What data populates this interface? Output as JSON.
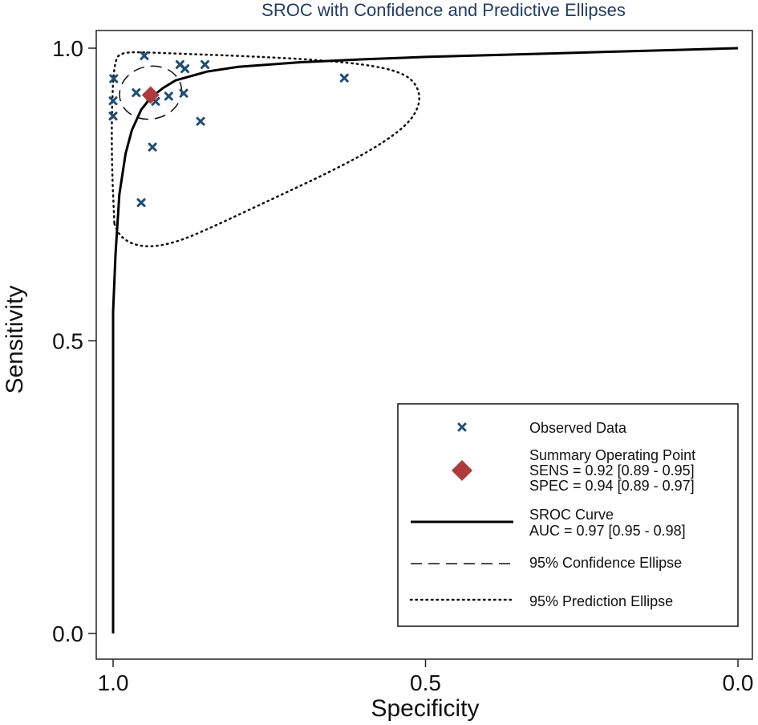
{
  "chart_data": {
    "type": "scatter",
    "title": "SROC with Confidence and Predictive Ellipses",
    "xlabel": "Specificity",
    "ylabel": "Sensitivity",
    "xlim": [
      1.0,
      0.0
    ],
    "ylim": [
      0.0,
      1.0
    ],
    "x_reversed": true,
    "grid": false,
    "legend_position": "bottom-right",
    "xticks": [
      {
        "value": 1.0,
        "label": "1.0"
      },
      {
        "value": 0.5,
        "label": "0.5"
      },
      {
        "value": 0.0,
        "label": "0.0"
      }
    ],
    "yticks": [
      {
        "value": 0.0,
        "label": "0.0"
      },
      {
        "value": 0.5,
        "label": "0.5"
      },
      {
        "value": 1.0,
        "label": "1.0"
      }
    ],
    "observed_data": {
      "name": "Observed Data",
      "color": "#1f4e79",
      "points": [
        {
          "x": 0.95,
          "y": 0.987
        },
        {
          "x": 0.893,
          "y": 0.972
        },
        {
          "x": 0.885,
          "y": 0.965
        },
        {
          "x": 0.853,
          "y": 0.972
        },
        {
          "x": 0.999,
          "y": 0.948
        },
        {
          "x": 0.63,
          "y": 0.949
        },
        {
          "x": 0.963,
          "y": 0.924
        },
        {
          "x": 0.94,
          "y": 0.917
        },
        {
          "x": 0.932,
          "y": 0.909
        },
        {
          "x": 0.911,
          "y": 0.918
        },
        {
          "x": 0.887,
          "y": 0.923
        },
        {
          "x": 1.0,
          "y": 0.91
        },
        {
          "x": 1.0,
          "y": 0.884
        },
        {
          "x": 0.86,
          "y": 0.875
        },
        {
          "x": 0.937,
          "y": 0.831
        },
        {
          "x": 0.955,
          "y": 0.736
        }
      ]
    },
    "summary_point": {
      "name": "Summary Operating Point",
      "sens_label": "SENS = 0.92 [0.89 - 0.95]",
      "spec_label": "SPEC = 0.94 [0.89 - 0.97]",
      "x": 0.94,
      "y": 0.92,
      "color": "#b03a3a"
    },
    "sroc_curve": {
      "name": "SROC Curve",
      "auc_label": "AUC = 0.97 [0.95 - 0.98]",
      "points": [
        [
          1.0,
          0.0
        ],
        [
          1.0,
          0.55
        ],
        [
          0.996,
          0.65
        ],
        [
          0.99,
          0.75
        ],
        [
          0.98,
          0.82
        ],
        [
          0.97,
          0.86
        ],
        [
          0.955,
          0.895
        ],
        [
          0.94,
          0.915
        ],
        [
          0.92,
          0.932
        ],
        [
          0.9,
          0.945
        ],
        [
          0.85,
          0.96
        ],
        [
          0.8,
          0.968
        ],
        [
          0.7,
          0.976
        ],
        [
          0.6,
          0.981
        ],
        [
          0.5,
          0.985
        ],
        [
          0.4,
          0.988
        ],
        [
          0.3,
          0.991
        ],
        [
          0.2,
          0.994
        ],
        [
          0.1,
          0.997
        ],
        [
          0.0,
          1.0
        ]
      ]
    },
    "confidence_ellipse": {
      "name": "95% Confidence Ellipse",
      "center": [
        0.94,
        0.924
      ],
      "rx": 0.05,
      "ry": 0.045,
      "tilt_deg": -12
    },
    "prediction_ellipse": {
      "name": "95% Prediction Ellipse",
      "points": [
        [
          0.998,
          0.7
        ],
        [
          0.99,
          0.68
        ],
        [
          0.97,
          0.665
        ],
        [
          0.94,
          0.66
        ],
        [
          0.9,
          0.668
        ],
        [
          0.85,
          0.69
        ],
        [
          0.75,
          0.74
        ],
        [
          0.65,
          0.79
        ],
        [
          0.58,
          0.83
        ],
        [
          0.53,
          0.868
        ],
        [
          0.51,
          0.9
        ],
        [
          0.51,
          0.93
        ],
        [
          0.53,
          0.955
        ],
        [
          0.58,
          0.97
        ],
        [
          0.67,
          0.98
        ],
        [
          0.78,
          0.986
        ],
        [
          0.88,
          0.99
        ],
        [
          0.95,
          0.993
        ],
        [
          0.985,
          0.993
        ],
        [
          0.998,
          0.98
        ],
        [
          1.002,
          0.9
        ],
        [
          1.002,
          0.8
        ],
        [
          0.998,
          0.7
        ]
      ]
    }
  }
}
